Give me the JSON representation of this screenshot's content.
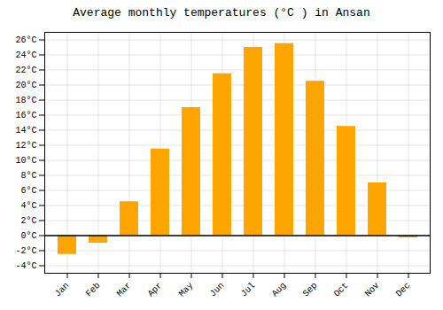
{
  "chart_data": {
    "type": "bar",
    "title": "Average monthly temperatures (°C ) in Ansan",
    "categories": [
      "Jan",
      "Feb",
      "Mar",
      "Apr",
      "May",
      "Jun",
      "Jul",
      "Aug",
      "Sep",
      "Oct",
      "Nov",
      "Dec"
    ],
    "values": [
      -2.5,
      -1.0,
      4.5,
      11.5,
      17.0,
      21.5,
      25.0,
      25.5,
      20.5,
      14.5,
      7.0,
      -0.3
    ],
    "color": "#FFA500",
    "ylim": [
      -5,
      27
    ],
    "yticks": [
      {
        "value": -4,
        "label": "-4°C"
      },
      {
        "value": -2,
        "label": "-2°C"
      },
      {
        "value": 0,
        "label": "0°C"
      },
      {
        "value": 2,
        "label": "2°C"
      },
      {
        "value": 4,
        "label": "4°C"
      },
      {
        "value": 6,
        "label": "6°C"
      },
      {
        "value": 8,
        "label": "8°C"
      },
      {
        "value": 10,
        "label": "10°C"
      },
      {
        "value": 12,
        "label": "12°C"
      },
      {
        "value": 14,
        "label": "14°C"
      },
      {
        "value": 16,
        "label": "16°C"
      },
      {
        "value": 18,
        "label": "18°C"
      },
      {
        "value": 20,
        "label": "20°C"
      },
      {
        "value": 22,
        "label": "22°C"
      },
      {
        "value": 24,
        "label": "24°C"
      },
      {
        "value": 26,
        "label": "26°C"
      }
    ],
    "grid": true
  }
}
